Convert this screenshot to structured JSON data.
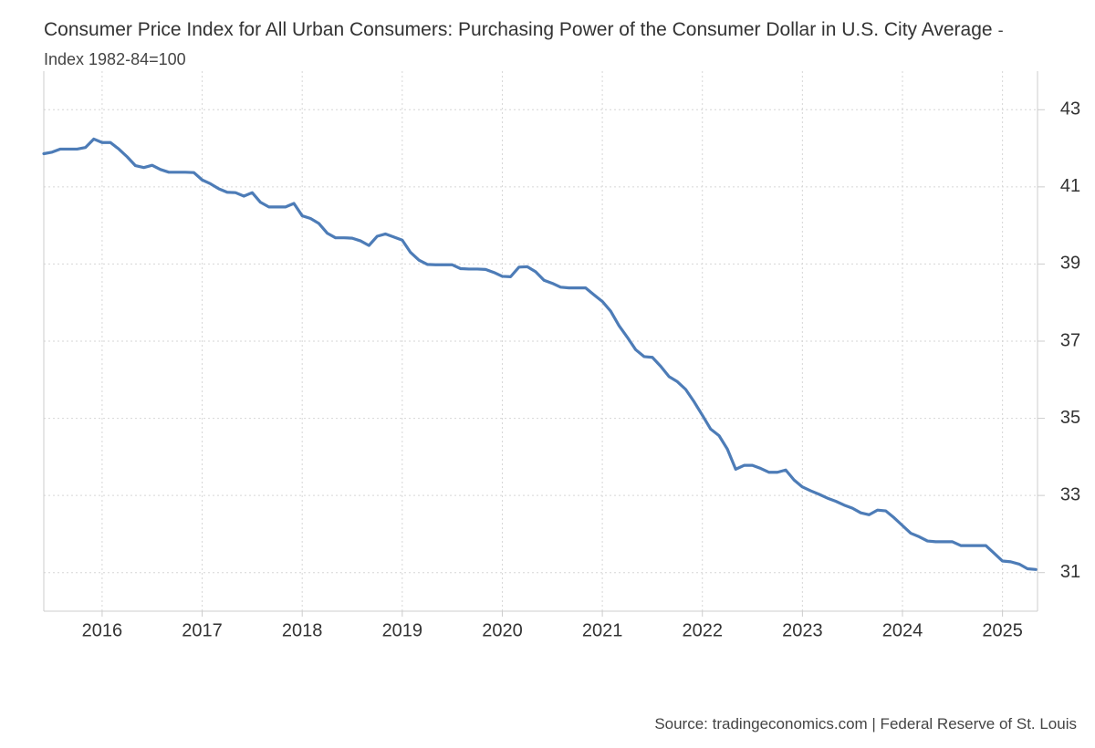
{
  "title": "Consumer Price Index for All Urban Consumers: Purchasing Power of the Consumer Dollar in U.S. City Average",
  "subtitle": "- Index 1982-84=100",
  "source": "Source: tradingeconomics.com | Federal Reserve of St. Louis",
  "chart_data": {
    "type": "line",
    "color": "#4d7cb7",
    "grid": true,
    "xlim": [
      2015.417,
      2025.35
    ],
    "xticks": [
      2016,
      2017,
      2018,
      2019,
      2020,
      2021,
      2022,
      2023,
      2024,
      2025
    ],
    "ylim": [
      30,
      44
    ],
    "yticks": [
      31,
      33,
      35,
      37,
      39,
      41,
      43
    ],
    "x": [
      2015.417,
      2015.5,
      2015.583,
      2015.667,
      2015.75,
      2015.833,
      2015.917,
      2016,
      2016.083,
      2016.167,
      2016.25,
      2016.333,
      2016.417,
      2016.5,
      2016.583,
      2016.667,
      2016.75,
      2016.833,
      2016.917,
      2017,
      2017.083,
      2017.167,
      2017.25,
      2017.333,
      2017.417,
      2017.5,
      2017.583,
      2017.667,
      2017.75,
      2017.833,
      2017.917,
      2018,
      2018.083,
      2018.167,
      2018.25,
      2018.333,
      2018.417,
      2018.5,
      2018.583,
      2018.667,
      2018.75,
      2018.833,
      2018.917,
      2019,
      2019.083,
      2019.167,
      2019.25,
      2019.333,
      2019.417,
      2019.5,
      2019.583,
      2019.667,
      2019.75,
      2019.833,
      2019.917,
      2020,
      2020.083,
      2020.167,
      2020.25,
      2020.333,
      2020.417,
      2020.5,
      2020.583,
      2020.667,
      2020.75,
      2020.833,
      2020.917,
      2021,
      2021.083,
      2021.167,
      2021.25,
      2021.333,
      2021.417,
      2021.5,
      2021.583,
      2021.667,
      2021.75,
      2021.833,
      2021.917,
      2022,
      2022.083,
      2022.167,
      2022.25,
      2022.333,
      2022.417,
      2022.5,
      2022.583,
      2022.667,
      2022.75,
      2022.833,
      2022.917,
      2023,
      2023.083,
      2023.167,
      2023.25,
      2023.333,
      2023.417,
      2023.5,
      2023.583,
      2023.667,
      2023.75,
      2023.833,
      2023.917,
      2024,
      2024.083,
      2024.167,
      2024.25,
      2024.333,
      2024.417,
      2024.5,
      2024.583,
      2024.667,
      2024.75,
      2024.833,
      2024.917,
      2025,
      2025.083,
      2025.167,
      2025.25,
      2025.333
    ],
    "values": [
      41.86,
      41.9,
      41.98,
      41.98,
      41.98,
      42.02,
      42.24,
      42.15,
      42.15,
      41.98,
      41.78,
      41.55,
      41.5,
      41.56,
      41.45,
      41.38,
      41.38,
      41.38,
      41.37,
      41.18,
      41.08,
      40.95,
      40.86,
      40.85,
      40.76,
      40.85,
      40.6,
      40.48,
      40.48,
      40.48,
      40.57,
      40.25,
      40.18,
      40.05,
      39.8,
      39.68,
      39.68,
      39.67,
      39.6,
      39.48,
      39.72,
      39.78,
      39.7,
      39.62,
      39.3,
      39.1,
      38.99,
      38.98,
      38.98,
      38.98,
      38.88,
      38.87,
      38.87,
      38.86,
      38.78,
      38.68,
      38.67,
      38.92,
      38.93,
      38.8,
      38.58,
      38.5,
      38.4,
      38.38,
      38.38,
      38.38,
      38.2,
      38.03,
      37.78,
      37.4,
      37.1,
      36.78,
      36.6,
      36.58,
      36.35,
      36.08,
      35.95,
      35.75,
      35.43,
      35.08,
      34.72,
      34.55,
      34.2,
      33.68,
      33.78,
      33.78,
      33.7,
      33.6,
      33.6,
      33.66,
      33.4,
      33.22,
      33.12,
      33.03,
      32.93,
      32.85,
      32.75,
      32.67,
      32.55,
      32.5,
      32.62,
      32.6,
      32.42,
      32.22,
      32.02,
      31.93,
      31.82,
      31.8,
      31.8,
      31.8,
      31.7,
      31.7,
      31.7,
      31.7,
      31.5,
      31.3,
      31.28,
      31.22,
      31.1,
      31.08
    ]
  }
}
